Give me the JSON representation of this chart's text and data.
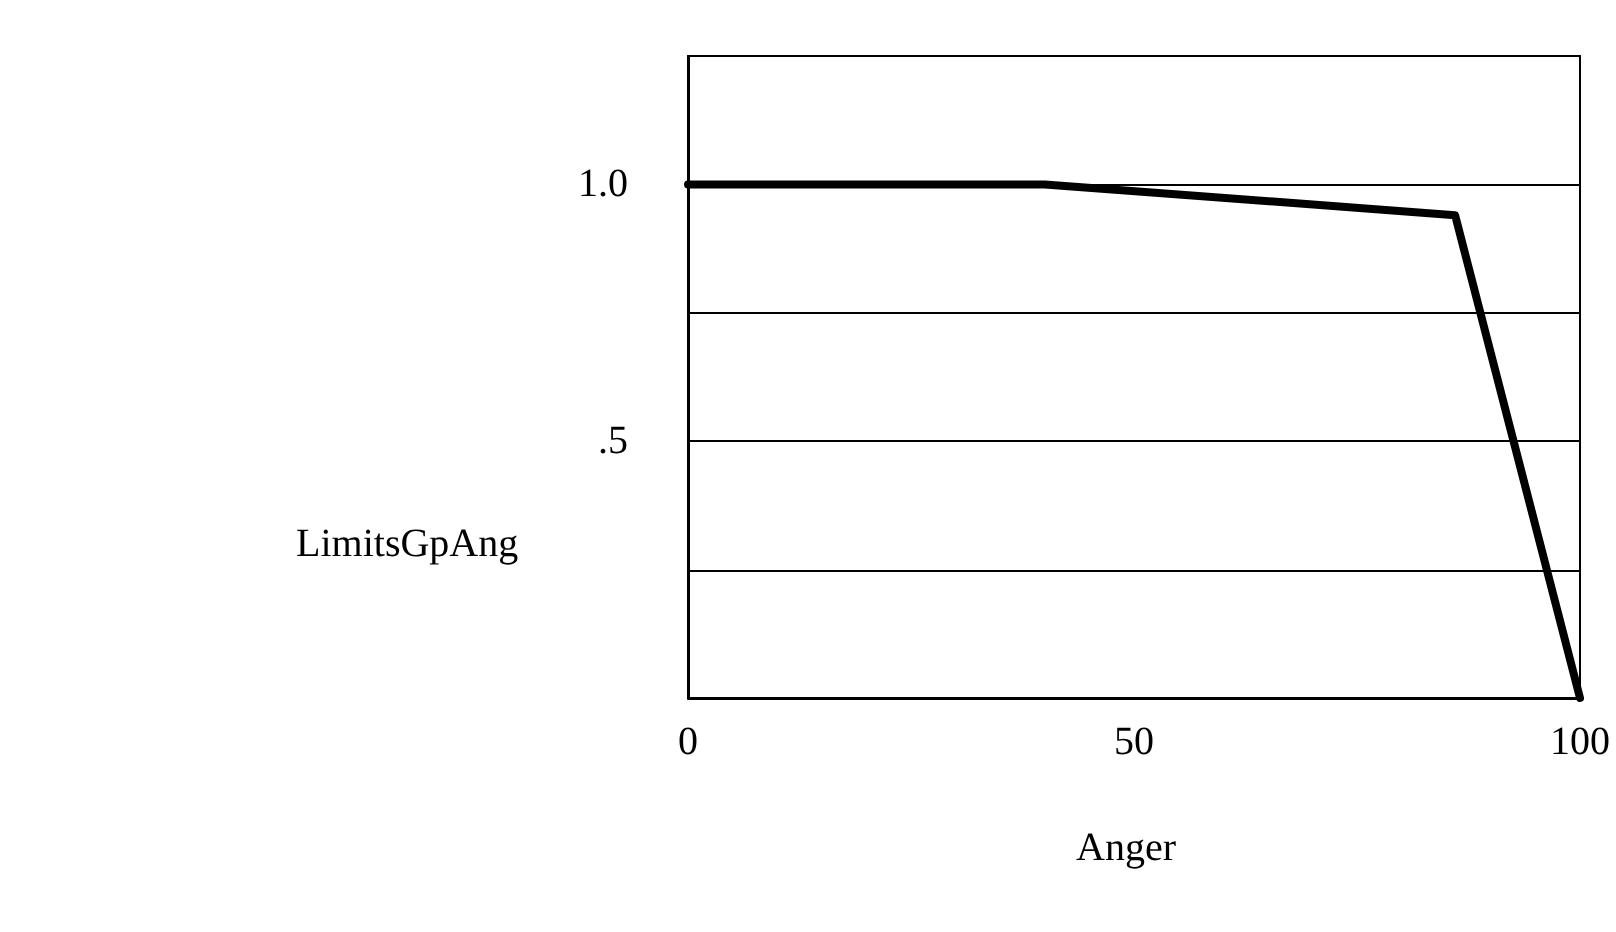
{
  "chart_data": {
    "type": "line",
    "xlabel": "Anger",
    "ylabel": "LimitsGpAng",
    "x": [
      0,
      40,
      86,
      100
    ],
    "series": [
      {
        "color": "#000000",
        "values": [
          1.0,
          1.0,
          0.94,
          0
        ]
      }
    ],
    "xlim": [
      0,
      100
    ],
    "xticks": [
      0,
      50,
      100
    ],
    "ylim": [
      0,
      1.25
    ],
    "yticks": [
      {
        "value": 0.25,
        "label": null
      },
      {
        "value": 0.5,
        "label": ".5"
      },
      {
        "value": 0.75,
        "label": null
      },
      {
        "value": 1,
        "label": "1.0"
      }
    ],
    "grid": "y",
    "marker": "none",
    "line_style": "solid"
  }
}
